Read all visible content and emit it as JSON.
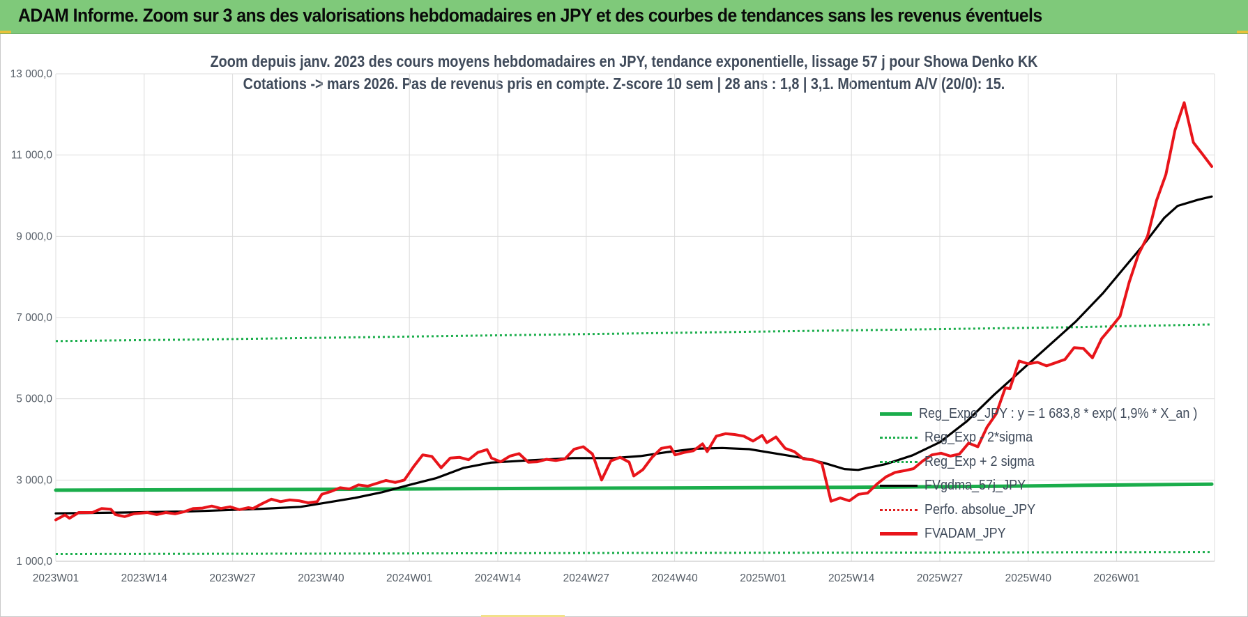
{
  "banner": {
    "title": "ADAM Informe. Zoom sur 3 ans des valorisations hebdomadaires en JPY et des courbes de tendances sans les revenus éventuels"
  },
  "chart_data": {
    "type": "line",
    "title_line1": "Zoom depuis janv. 2023 des cours moyens hebdomadaires en JPY, tendance exponentielle, lissage 57 j pour Showa Denko KK",
    "title_line2": "Cotations -> mars 2026. Pas de revenus pris en compte. Z-score 10 sem | 28 ans : 1,8 | 3,1. Momentum A/V (20/0): 15.",
    "ylim": [
      1000,
      13000
    ],
    "y_ticks": [
      "1 000,0",
      "3 000,0",
      "5 000,0",
      "7 000,0",
      "9 000,0",
      "11 000,0",
      "13 000,0"
    ],
    "x_ticks": [
      "2023W01",
      "2023W14",
      "2023W27",
      "2023W40",
      "2024W01",
      "2024W14",
      "2024W27",
      "2024W40",
      "2025W01",
      "2025W14",
      "2025W27",
      "2025W40",
      "2026W01"
    ],
    "grid": true,
    "legend_position": "bottom-right",
    "legend": [
      {
        "label": "Reg_Expo_JPY : y = 1 683,8 * exp( 1,9% *  X_an )",
        "color": "#1aad4b",
        "style": "solid-thick"
      },
      {
        "label": "Reg_Exp - 2*sigma",
        "color": "#1aad4b",
        "style": "dotted"
      },
      {
        "label": "Reg_Exp + 2 sigma",
        "color": "#1aad4b",
        "style": "dotted"
      },
      {
        "label": "FVgdma_57j_JPY",
        "color": "#000000",
        "style": "solid"
      },
      {
        "label": "Perfo. absolue_JPY",
        "color": "#e01b1b",
        "style": "dotted"
      },
      {
        "label": "FVADAM_JPY",
        "color": "#e8141a",
        "style": "solid-thick"
      }
    ],
    "series": [
      {
        "name": "Reg_Expo_JPY : y = 1 683,8 * exp( 1,9% *  X_an )",
        "color": "#1aad4b",
        "points": [
          [
            0,
            2750
          ],
          [
            36,
            2770
          ],
          [
            60,
            2790
          ],
          [
            84,
            2805
          ],
          [
            110,
            2820
          ],
          [
            132,
            2850
          ],
          [
            142,
            2870
          ],
          [
            160,
            2900
          ]
        ]
      },
      {
        "name": "Reg_Exp - 2*sigma",
        "color": "#1aad4b",
        "points": [
          [
            0,
            1180
          ],
          [
            40,
            1190
          ],
          [
            80,
            1205
          ],
          [
            120,
            1215
          ],
          [
            160,
            1230
          ]
        ]
      },
      {
        "name": "Reg_Exp + 2 sigma",
        "color": "#1aad4b",
        "points": [
          [
            0,
            6420
          ],
          [
            20,
            6460
          ],
          [
            40,
            6510
          ],
          [
            60,
            6560
          ],
          [
            80,
            6610
          ],
          [
            100,
            6660
          ],
          [
            120,
            6710
          ],
          [
            140,
            6760
          ],
          [
            160,
            6830
          ]
        ]
      },
      {
        "name": "FVgdma_57j_JPY",
        "color": "#000000",
        "points": [
          [
            0,
            2180
          ],
          [
            10,
            2200
          ],
          [
            20,
            2230
          ],
          [
            30,
            2290
          ],
          [
            36,
            2340
          ],
          [
            40,
            2450
          ],
          [
            44,
            2560
          ],
          [
            48,
            2700
          ],
          [
            52,
            2880
          ],
          [
            56,
            3050
          ],
          [
            60,
            3300
          ],
          [
            64,
            3430
          ],
          [
            70,
            3490
          ],
          [
            76,
            3540
          ],
          [
            82,
            3540
          ],
          [
            86,
            3590
          ],
          [
            90,
            3690
          ],
          [
            94,
            3770
          ],
          [
            98,
            3790
          ],
          [
            102,
            3760
          ],
          [
            106,
            3650
          ],
          [
            110,
            3540
          ],
          [
            113,
            3420
          ],
          [
            116,
            3270
          ],
          [
            118,
            3250
          ],
          [
            122,
            3390
          ],
          [
            126,
            3610
          ],
          [
            130,
            3930
          ],
          [
            134,
            4450
          ],
          [
            138,
            5100
          ],
          [
            142,
            5700
          ],
          [
            146,
            6300
          ],
          [
            150,
            6900
          ],
          [
            154,
            7600
          ],
          [
            157,
            8200
          ],
          [
            160,
            8800
          ],
          [
            163,
            9450
          ],
          [
            165,
            9750
          ],
          [
            168,
            9900
          ],
          [
            170,
            9980
          ]
        ]
      },
      {
        "name": "FVADAM_JPY",
        "color": "#e8141a",
        "points": [
          [
            0,
            2020
          ],
          [
            2,
            2140
          ],
          [
            3,
            2060
          ],
          [
            5,
            2200
          ],
          [
            8,
            2200
          ],
          [
            10,
            2300
          ],
          [
            12,
            2280
          ],
          [
            13,
            2150
          ],
          [
            15,
            2100
          ],
          [
            17,
            2170
          ],
          [
            20,
            2200
          ],
          [
            22,
            2150
          ],
          [
            24,
            2200
          ],
          [
            26,
            2170
          ],
          [
            28,
            2220
          ],
          [
            30,
            2300
          ],
          [
            32,
            2310
          ],
          [
            34,
            2360
          ],
          [
            36,
            2300
          ],
          [
            38,
            2340
          ],
          [
            40,
            2270
          ],
          [
            42,
            2320
          ],
          [
            43,
            2300
          ],
          [
            45,
            2420
          ],
          [
            47,
            2530
          ],
          [
            49,
            2470
          ],
          [
            51,
            2510
          ],
          [
            53,
            2490
          ],
          [
            55,
            2440
          ],
          [
            57,
            2470
          ],
          [
            58,
            2650
          ],
          [
            60,
            2720
          ],
          [
            62,
            2810
          ],
          [
            64,
            2780
          ],
          [
            66,
            2880
          ],
          [
            68,
            2850
          ],
          [
            70,
            2920
          ],
          [
            72,
            2990
          ],
          [
            74,
            2940
          ],
          [
            76,
            3000
          ],
          [
            78,
            3330
          ],
          [
            80,
            3620
          ],
          [
            82,
            3580
          ],
          [
            84,
            3300
          ],
          [
            86,
            3540
          ],
          [
            88,
            3560
          ],
          [
            90,
            3500
          ],
          [
            92,
            3680
          ],
          [
            94,
            3750
          ],
          [
            95,
            3540
          ],
          [
            97,
            3450
          ],
          [
            99,
            3590
          ],
          [
            101,
            3650
          ],
          [
            103,
            3440
          ],
          [
            105,
            3450
          ],
          [
            107,
            3510
          ],
          [
            109,
            3480
          ],
          [
            111,
            3520
          ],
          [
            113,
            3760
          ],
          [
            115,
            3820
          ],
          [
            117,
            3640
          ],
          [
            119,
            3000
          ],
          [
            121,
            3470
          ],
          [
            123,
            3560
          ],
          [
            125,
            3440
          ],
          [
            126,
            3100
          ],
          [
            128,
            3260
          ],
          [
            130,
            3560
          ],
          [
            132,
            3780
          ],
          [
            134,
            3820
          ],
          [
            135,
            3620
          ],
          [
            137,
            3680
          ],
          [
            139,
            3720
          ],
          [
            141,
            3890
          ],
          [
            142,
            3700
          ],
          [
            144,
            4080
          ],
          [
            146,
            4140
          ],
          [
            148,
            4120
          ],
          [
            150,
            4080
          ],
          [
            152,
            3960
          ],
          [
            154,
            4100
          ],
          [
            155,
            3920
          ],
          [
            157,
            4060
          ],
          [
            159,
            3780
          ],
          [
            161,
            3700
          ],
          [
            163,
            3520
          ],
          [
            165,
            3500
          ],
          [
            167,
            3410
          ],
          [
            169,
            2480
          ],
          [
            171,
            2560
          ],
          [
            173,
            2490
          ],
          [
            175,
            2650
          ],
          [
            177,
            2680
          ],
          [
            179,
            2900
          ],
          [
            181,
            3080
          ],
          [
            183,
            3190
          ],
          [
            185,
            3230
          ],
          [
            187,
            3280
          ],
          [
            189,
            3470
          ],
          [
            191,
            3620
          ],
          [
            193,
            3660
          ],
          [
            195,
            3590
          ],
          [
            197,
            3640
          ],
          [
            199,
            3910
          ],
          [
            201,
            3820
          ],
          [
            203,
            4300
          ],
          [
            205,
            4630
          ],
          [
            207,
            5270
          ],
          [
            208,
            5250
          ],
          [
            210,
            5930
          ],
          [
            212,
            5860
          ],
          [
            214,
            5900
          ],
          [
            216,
            5810
          ],
          [
            218,
            5890
          ],
          [
            220,
            5970
          ],
          [
            222,
            6260
          ],
          [
            224,
            6240
          ],
          [
            226,
            6010
          ],
          [
            228,
            6480
          ],
          [
            230,
            6750
          ],
          [
            232,
            7030
          ],
          [
            234,
            7870
          ],
          [
            236,
            8550
          ],
          [
            238,
            9000
          ],
          [
            240,
            9890
          ],
          [
            242,
            10520
          ],
          [
            244,
            11620
          ],
          [
            246,
            12290
          ],
          [
            248,
            11310
          ],
          [
            250,
            11020
          ],
          [
            252,
            10720
          ]
        ]
      }
    ]
  }
}
